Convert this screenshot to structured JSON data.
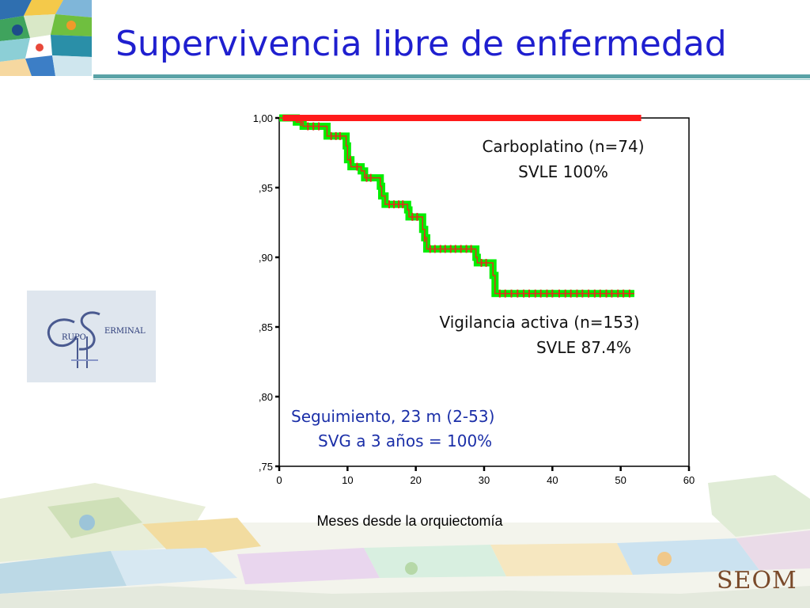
{
  "slide": {
    "title": "Supervivencia libre de enfermedad",
    "footer_logo_text": "SEOM",
    "group_logo_text": "GRUPO GERMINAL"
  },
  "colors": {
    "title": "#1f1fcf",
    "accent_rule": "#5aa3a7",
    "carboplatino_line": "#ff1a1a",
    "vigilancia_band": "#00ee00",
    "censor_marks": "#e0301e",
    "annotation_blue": "#1b2fa8"
  },
  "chart_data": {
    "type": "line",
    "title": "",
    "xlabel": "Meses desde la orquiectomía",
    "ylabel": "",
    "xlim": [
      0,
      60
    ],
    "ylim": [
      0.75,
      1.0
    ],
    "x_ticks": [
      0,
      10,
      20,
      30,
      40,
      50,
      60
    ],
    "x_tick_labels": [
      "0",
      "10",
      "20",
      "30",
      "40",
      "50",
      "60"
    ],
    "y_ticks": [
      0.75,
      0.8,
      0.85,
      0.9,
      0.95,
      1.0
    ],
    "y_tick_labels": [
      ",75",
      ",80",
      ",85",
      ",90",
      ",95",
      "1,00"
    ],
    "series": [
      {
        "name": "Carboplatino (n=74)",
        "step": [
          [
            0.5,
            1.0
          ],
          [
            53,
            1.0
          ]
        ]
      },
      {
        "name": "Vigilancia activa (n=153)",
        "step": [
          [
            0,
            1.0
          ],
          [
            2,
            1.0
          ],
          [
            2.5,
            0.997
          ],
          [
            3.5,
            0.994
          ],
          [
            6.5,
            0.994
          ],
          [
            7,
            0.987
          ],
          [
            9.5,
            0.987
          ],
          [
            9.8,
            0.98
          ],
          [
            10,
            0.97
          ],
          [
            10.5,
            0.965
          ],
          [
            12,
            0.962
          ],
          [
            12.5,
            0.957
          ],
          [
            14.5,
            0.957
          ],
          [
            14.8,
            0.951
          ],
          [
            15,
            0.944
          ],
          [
            15.5,
            0.938
          ],
          [
            18.5,
            0.938
          ],
          [
            18.8,
            0.934
          ],
          [
            19,
            0.929
          ],
          [
            20.8,
            0.929
          ],
          [
            21,
            0.92
          ],
          [
            21.3,
            0.914
          ],
          [
            21.6,
            0.906
          ],
          [
            28.5,
            0.906
          ],
          [
            28.8,
            0.9
          ],
          [
            29,
            0.896
          ],
          [
            31,
            0.896
          ],
          [
            31.3,
            0.887
          ],
          [
            31.6,
            0.874
          ],
          [
            52,
            0.874
          ]
        ],
        "censored": [
          3.2,
          4.2,
          5,
          5.8,
          7.6,
          8.3,
          8.9,
          10.4,
          11.4,
          12.8,
          13.4,
          16.1,
          16.8,
          17.5,
          18.1,
          19.5,
          20.2,
          21.3,
          22.1,
          22.8,
          23.6,
          24.3,
          25.1,
          25.8,
          26.6,
          27.4,
          28.1,
          29.6,
          30.3,
          32.3,
          33.1,
          34,
          34.9,
          35.8,
          36.6,
          37.5,
          38.3,
          39.2,
          40,
          41,
          41.9,
          42.7,
          43.6,
          44.4,
          45.3,
          46.2,
          47,
          47.9,
          48.7,
          49.6,
          50.4,
          51.3
        ]
      }
    ],
    "annotations": [
      {
        "id": "carbo-name",
        "text": "Carboplatino (n=74)"
      },
      {
        "id": "carbo-svle",
        "text": "SVLE 100%"
      },
      {
        "id": "vig-name",
        "text": "Vigilancia activa (n=153)"
      },
      {
        "id": "vig-svle",
        "text": "SVLE 87.4%"
      },
      {
        "id": "seguimiento",
        "text": "Seguimiento, 23 m (2-53)"
      },
      {
        "id": "svg3",
        "text": "SVG a 3 años = 100%"
      }
    ]
  }
}
